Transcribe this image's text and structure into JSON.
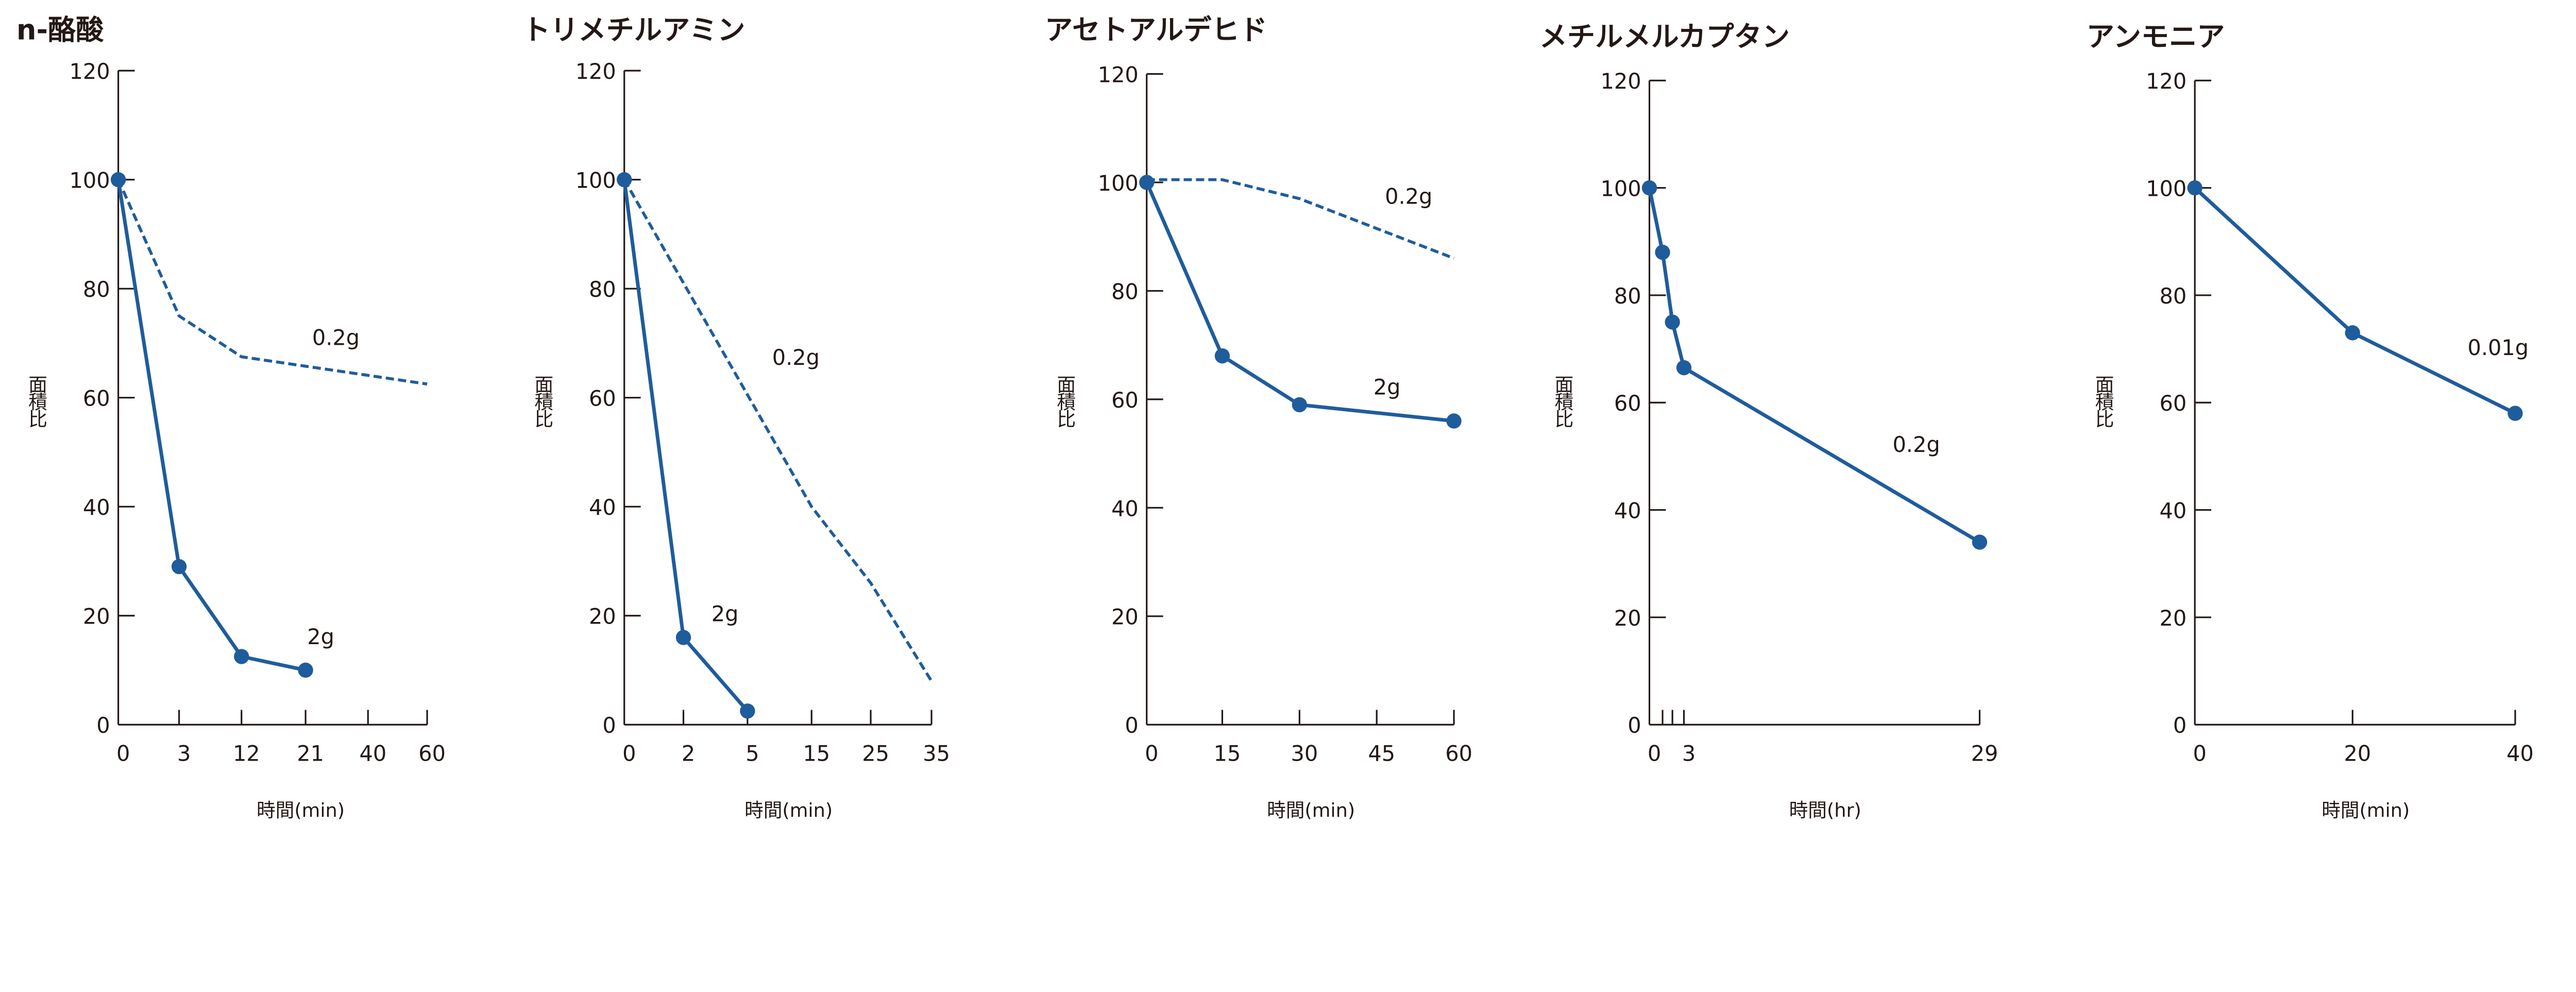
{
  "chart_data": [
    {
      "type": "line",
      "title": "n-酪酸",
      "xlabel": "時間(min)",
      "ylabel": "面積比",
      "ylim": [
        0,
        120
      ],
      "yticks": [
        "0",
        "20",
        "40",
        "60",
        "80",
        "100",
        "120"
      ],
      "xticks": [
        0,
        3,
        12,
        21,
        40,
        60
      ],
      "xtick_labels": [
        "0",
        "3",
        "12",
        "21",
        "40",
        "60"
      ],
      "series": [
        {
          "name": "2g",
          "style": "solid-markers",
          "x": [
            0,
            3,
            12,
            21
          ],
          "y": [
            100,
            29,
            12.5,
            10
          ]
        },
        {
          "name": "0.2g",
          "style": "dashed",
          "x": [
            0,
            3,
            12,
            60
          ],
          "y": [
            100,
            75,
            67.5,
            62.5
          ]
        }
      ]
    },
    {
      "type": "line",
      "title": "トリメチルアミン",
      "xlabel": "時間(min)",
      "ylabel": "面積比",
      "ylim": [
        0,
        120
      ],
      "yticks": [
        "0",
        "20",
        "40",
        "60",
        "80",
        "100",
        "120"
      ],
      "xticks": [
        0,
        2,
        5,
        15,
        25,
        35
      ],
      "xtick_labels": [
        "0",
        "2",
        "5",
        "15",
        "25",
        "35"
      ],
      "series": [
        {
          "name": "2g",
          "style": "solid-markers",
          "x": [
            0,
            2,
            5
          ],
          "y": [
            100,
            16,
            2.5
          ]
        },
        {
          "name": "0.2g",
          "style": "dashed",
          "x": [
            0,
            15,
            25,
            35
          ],
          "y": [
            100,
            40,
            26,
            8
          ]
        }
      ]
    },
    {
      "type": "line",
      "title": "アセトアルデヒド",
      "xlabel": "時間(min)",
      "ylabel": "面積比",
      "ylim": [
        0,
        120
      ],
      "yticks": [
        "0",
        "20",
        "40",
        "60",
        "80",
        "100",
        "120"
      ],
      "xticks": [
        0,
        15,
        30,
        45,
        60
      ],
      "xtick_labels": [
        "0",
        "15",
        "30",
        "45",
        "60"
      ],
      "series": [
        {
          "name": "2g",
          "style": "solid-markers",
          "x": [
            0,
            15,
            30,
            60
          ],
          "y": [
            100,
            68,
            59,
            56
          ]
        },
        {
          "name": "0.2g",
          "style": "dashed",
          "x": [
            0,
            15,
            30,
            60
          ],
          "y": [
            100.5,
            100.5,
            97,
            86
          ]
        }
      ]
    },
    {
      "type": "line",
      "title": "メチルメルカプタン",
      "xlabel": "時間(hr)",
      "ylabel": "面積比",
      "ylim": [
        0,
        120
      ],
      "yticks": [
        "0",
        "20",
        "40",
        "60",
        "80",
        "100",
        "120"
      ],
      "xticks": [
        0,
        1,
        2,
        3,
        29
      ],
      "xtick_labels": [
        "0",
        "",
        "",
        "3",
        "29"
      ],
      "series": [
        {
          "name": "0.2g",
          "style": "solid-markers",
          "x": [
            0,
            1,
            2,
            3,
            29
          ],
          "y": [
            100,
            88,
            75,
            66.5,
            34
          ]
        }
      ]
    },
    {
      "type": "line",
      "title": "アンモニア",
      "xlabel": "時間(min)",
      "ylabel": "面積比",
      "ylim": [
        0,
        120
      ],
      "yticks": [
        "0",
        "20",
        "40",
        "60",
        "80",
        "100",
        "120"
      ],
      "xticks": [
        0,
        20,
        40
      ],
      "xtick_labels": [
        "0",
        "20",
        "40"
      ],
      "series": [
        {
          "name": "0.01g",
          "style": "solid-markers",
          "x": [
            0,
            20,
            40
          ],
          "y": [
            100,
            73,
            58
          ]
        }
      ]
    }
  ],
  "colors": {
    "series": "#1f5c9c",
    "axis": "#231815"
  }
}
